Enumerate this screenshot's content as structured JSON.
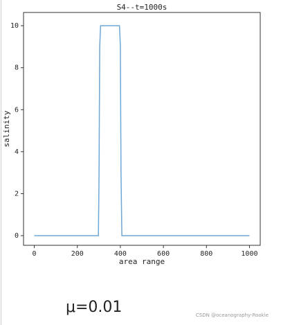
{
  "chart_data": {
    "type": "line",
    "title": "S4--t=1000s",
    "x_label": "area range",
    "y_label": "salinity",
    "x": [
      0,
      298,
      301,
      304,
      308,
      396,
      400,
      403,
      407,
      1000
    ],
    "series": [
      {
        "color": "#6ea6d6",
        "values": [
          0,
          0,
          3,
          9,
          10,
          10,
          9,
          3,
          0,
          0
        ]
      }
    ],
    "xlim": [
      -50,
      1050
    ],
    "ylim": [
      -0.46,
      10.63
    ],
    "xticks": [
      0,
      200,
      400,
      600,
      800,
      1000
    ],
    "yticks": [
      0,
      2,
      4,
      6,
      8,
      10
    ]
  },
  "caption": "μ=0.01",
  "watermark": "CSDN @oceanography-Rookie"
}
